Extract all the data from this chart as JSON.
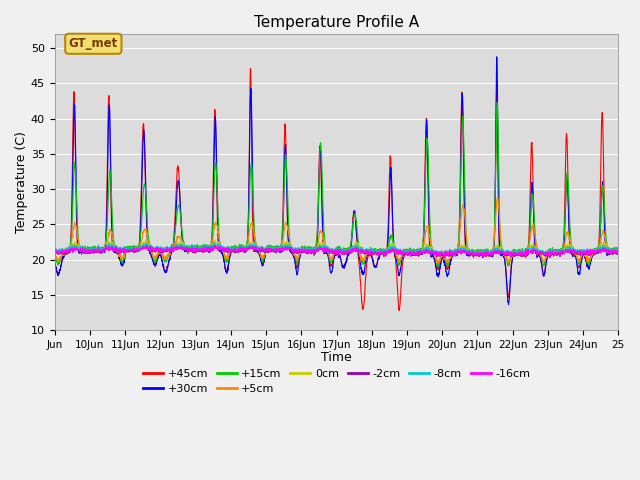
{
  "title": "Temperature Profile A",
  "xlabel": "Time",
  "ylabel": "Temperature (C)",
  "ylim": [
    10,
    52
  ],
  "yticks": [
    10,
    15,
    20,
    25,
    30,
    35,
    40,
    45,
    50
  ],
  "x_labels": [
    "Jun",
    "10Jun",
    "11Jun",
    "12Jun",
    "13Jun",
    "14Jun",
    "15Jun",
    "16Jun",
    "17Jun",
    "18Jun",
    "19Jun",
    "20Jun",
    "21Jun",
    "22Jun",
    "23Jun",
    "24Jun",
    "25"
  ],
  "series_colors": {
    "+45cm": "#ff0000",
    "+30cm": "#0000ff",
    "+15cm": "#00cc00",
    "+5cm": "#ff8800",
    "0cm": "#cccc00",
    "-2cm": "#9900aa",
    "-8cm": "#00cccc",
    "-16cm": "#ff00ff"
  },
  "legend_label": "GT_met",
  "fig_bg": "#f0f0f0",
  "plot_bg": "#dcdcdc",
  "grid_color": "#ffffff",
  "n_per_day": 144,
  "start_day": 9,
  "end_day": 25
}
